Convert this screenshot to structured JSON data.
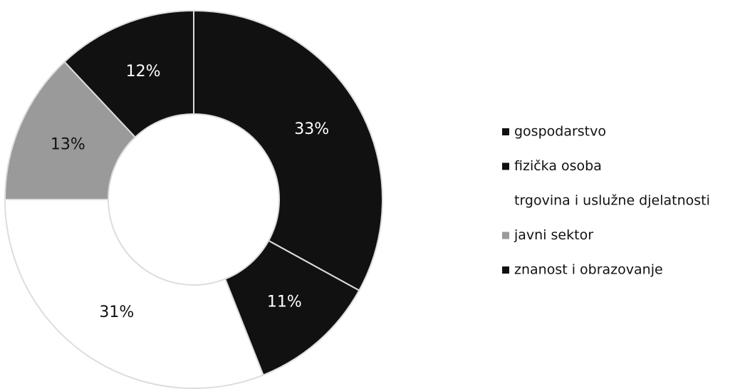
{
  "chart_data": {
    "type": "donut",
    "categories": [
      "gospodarstvo",
      "fizička osoba",
      "trgovina i uslužne djelatnosti",
      "javni sektor",
      "znanost i obrazovanje"
    ],
    "values": [
      33,
      11,
      31,
      13,
      12
    ],
    "value_labels": [
      "33%",
      "11%",
      "31%",
      "13%",
      "12%"
    ],
    "colors": [
      "#111111",
      "#111111",
      "#ffffff",
      "#9a9a9a",
      "#111111"
    ],
    "legend": "right"
  }
}
